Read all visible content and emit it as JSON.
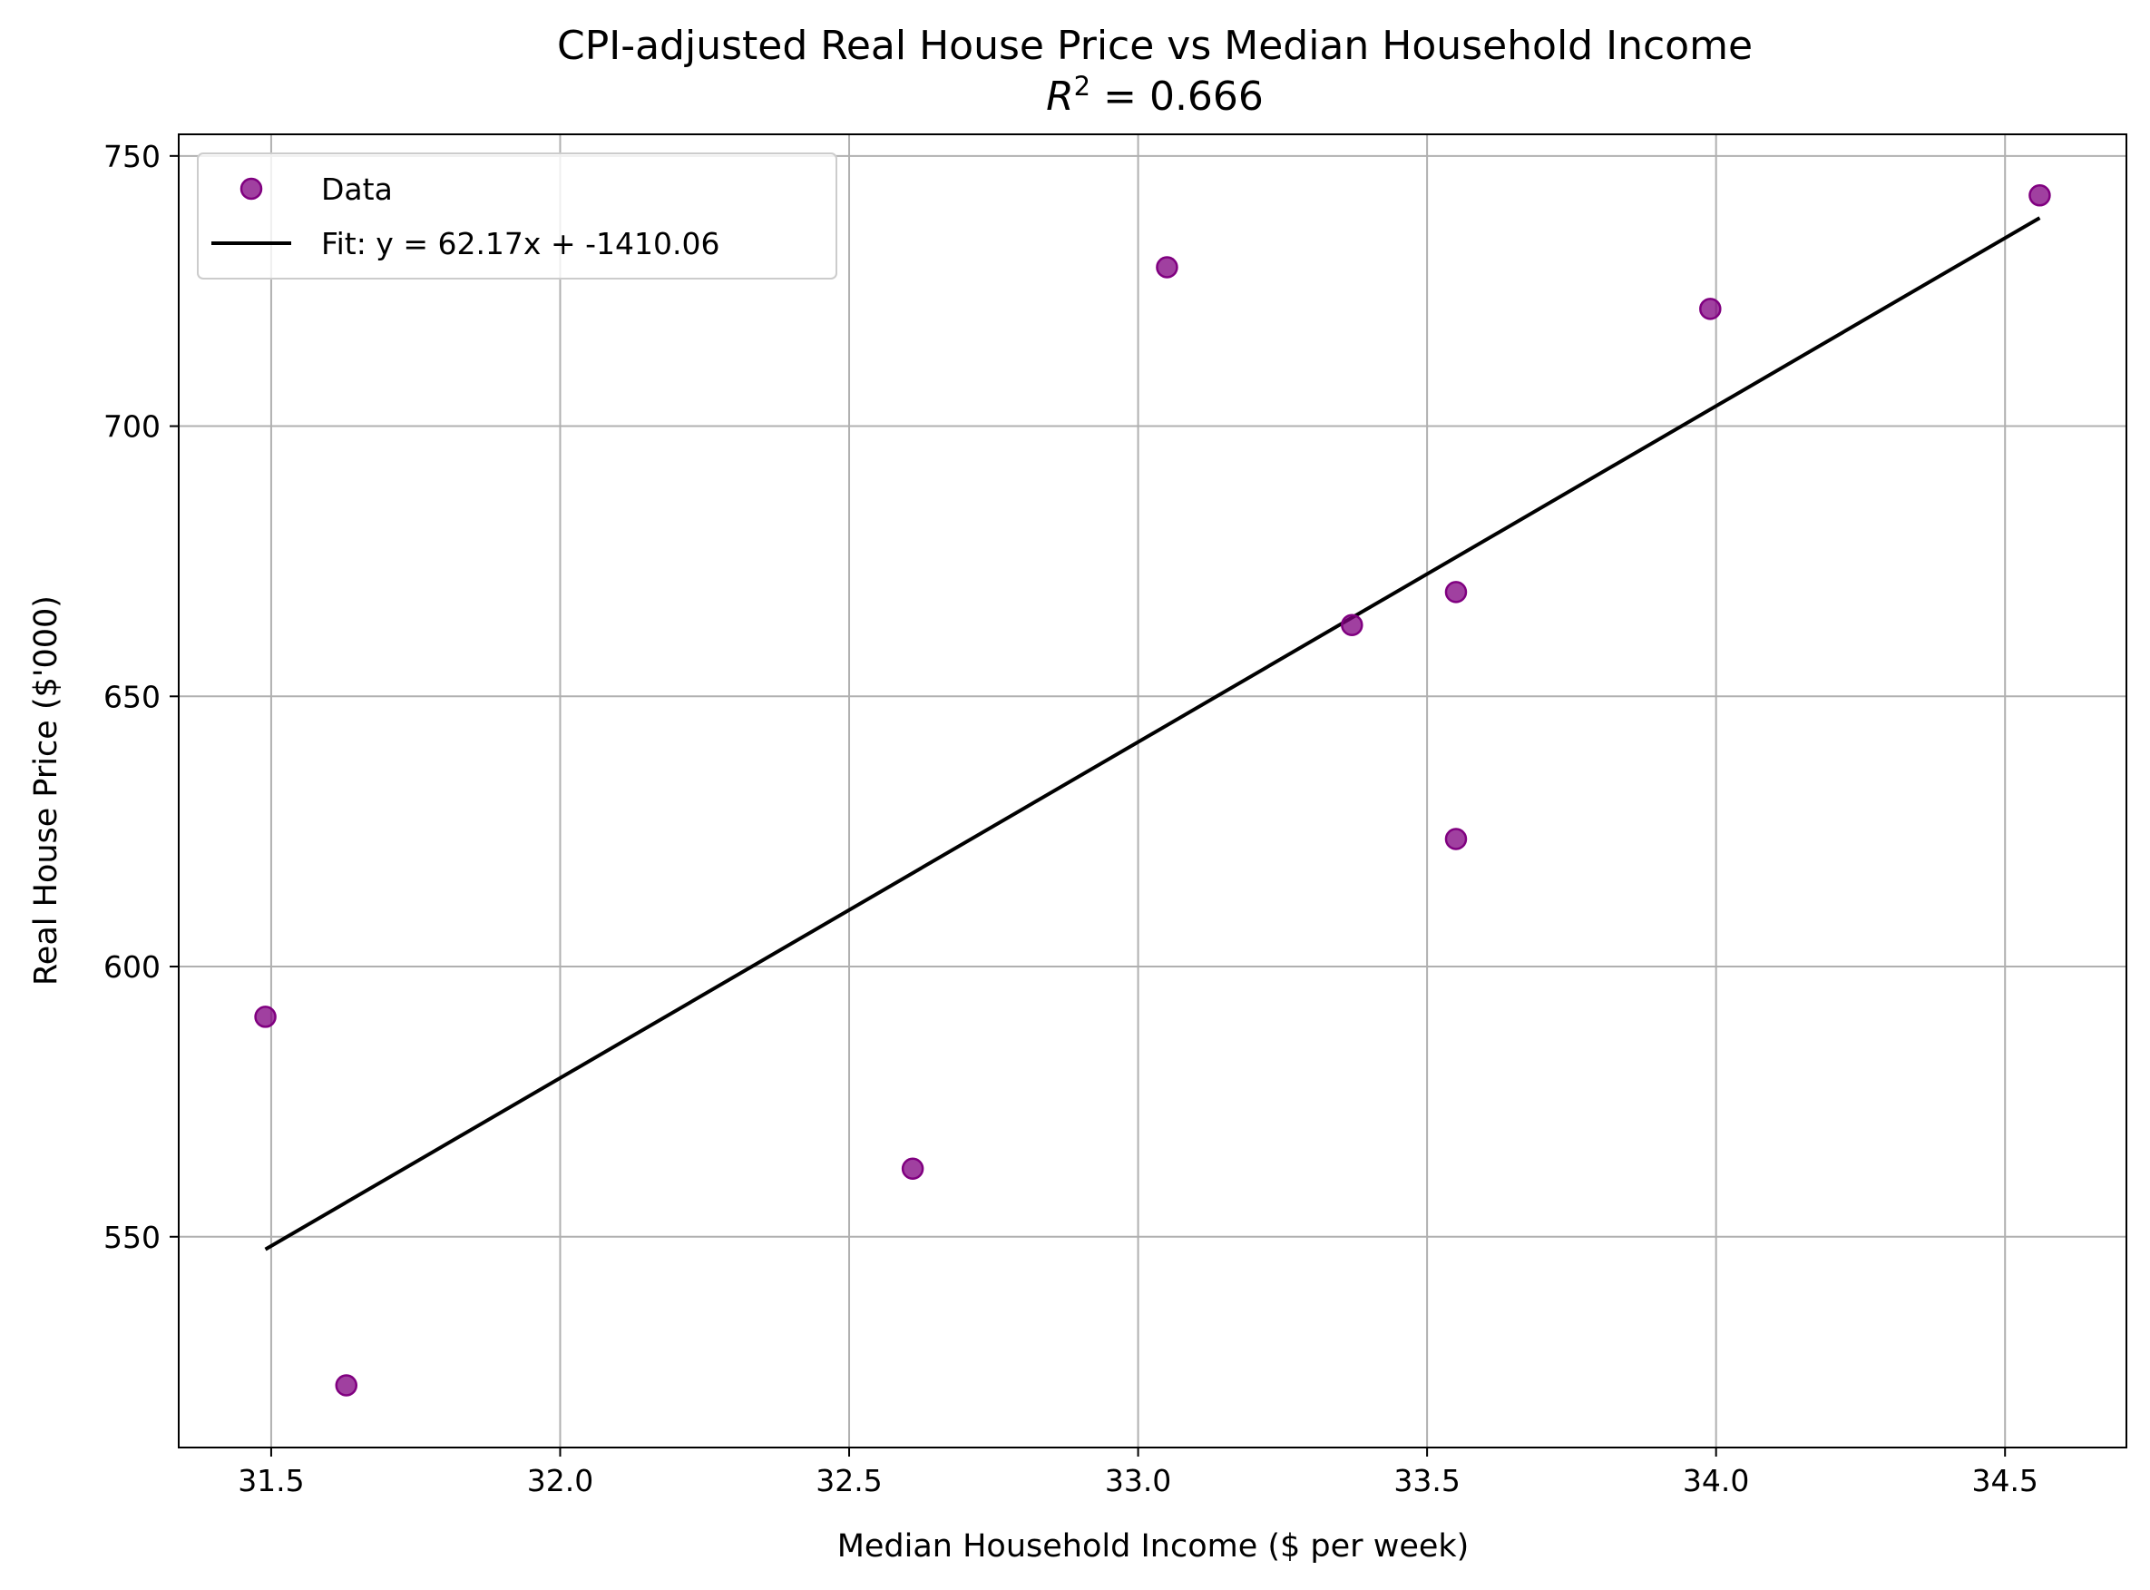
{
  "chart_data": {
    "type": "scatter",
    "title": "CPI-adjusted Real House Price vs Median Household Income",
    "subtitle_prefix": "R",
    "subtitle_sup": "2",
    "subtitle_value": " = 0.666",
    "xlabel": "Median Household Income ($ per week)",
    "ylabel": "Real House Price ($'000)",
    "xlim": [
      31.34,
      34.71
    ],
    "ylim": [
      511,
      754
    ],
    "xticks": [
      31.5,
      32.0,
      32.5,
      33.0,
      33.5,
      34.0,
      34.5
    ],
    "xtick_labels": [
      "31.5",
      "32.0",
      "32.5",
      "33.0",
      "33.5",
      "34.0",
      "34.5"
    ],
    "yticks": [
      550,
      600,
      650,
      700,
      750
    ],
    "ytick_labels": [
      "550",
      "600",
      "650",
      "700",
      "750"
    ],
    "grid": true,
    "legend_position": "top-left",
    "series": [
      {
        "name": "Data",
        "kind": "scatter",
        "color": "#800080",
        "points": [
          {
            "x": 31.49,
            "y": 590.7
          },
          {
            "x": 31.63,
            "y": 522.5
          },
          {
            "x": 32.61,
            "y": 562.6
          },
          {
            "x": 33.05,
            "y": 729.4
          },
          {
            "x": 33.37,
            "y": 663.2
          },
          {
            "x": 33.55,
            "y": 669.3
          },
          {
            "x": 33.55,
            "y": 623.6
          },
          {
            "x": 33.99,
            "y": 721.7
          },
          {
            "x": 34.56,
            "y": 742.7
          }
        ]
      },
      {
        "name": "Fit: y = 62.17x + -1410.06",
        "kind": "line",
        "color": "#000000",
        "slope": 62.17,
        "intercept": -1410.06,
        "x_range": [
          31.49,
          34.56
        ]
      }
    ]
  }
}
